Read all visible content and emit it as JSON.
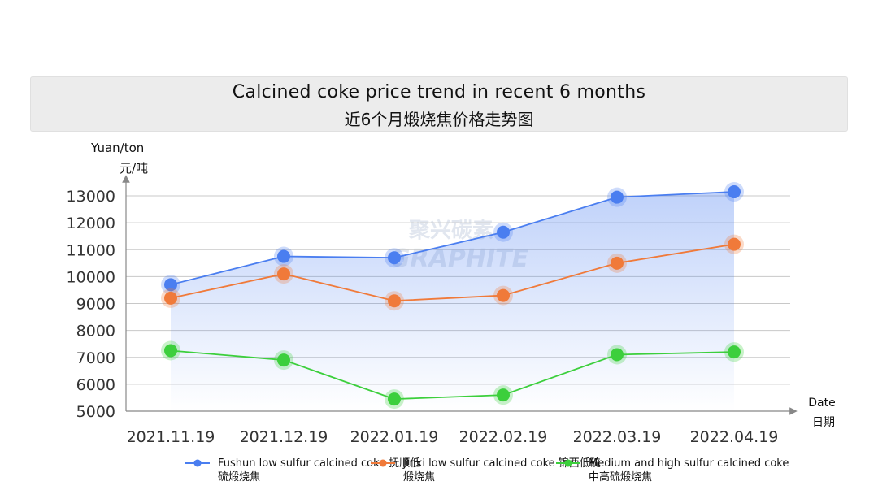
{
  "title": {
    "line1": "Calcined coke price trend in recent 6 months",
    "line2": "近6个月煅烧焦价格走势图"
  },
  "axis": {
    "ylabel_en": "Yuan/ton",
    "ylabel_zh": "元/吨",
    "xlabel_en": "Date",
    "xlabel_zh": "日期"
  },
  "watermark": {
    "cn": "聚兴碳素",
    "en": "GRAPHITE"
  },
  "colors": {
    "blue": "#4a7ef0",
    "orange": "#f07a3a",
    "green": "#3ccf3c"
  },
  "chart_data": {
    "type": "line",
    "x": [
      "2021.11.19",
      "2021.12.19",
      "2022.01.19",
      "2022.02.19",
      "2022.03.19",
      "2022.04.19"
    ],
    "yticks": [
      5000,
      6000,
      7000,
      8000,
      9000,
      10000,
      11000,
      12000,
      13000
    ],
    "ylim": [
      5000,
      13000
    ],
    "grid": true,
    "legend_position": "bottom",
    "series": [
      {
        "name": "Fushun low sulfur calcined coke 抚顺低硫煅烧焦",
        "color": "#4a7ef0",
        "values": [
          9700,
          10750,
          10700,
          11650,
          12950,
          13150
        ]
      },
      {
        "name": "Jinxi low sulfur calcined coke 锦西低硫煅烧焦",
        "color": "#f07a3a",
        "values": [
          9200,
          10100,
          9100,
          9300,
          10500,
          11200
        ]
      },
      {
        "name": "Medium and high sulfur calcined coke 中高硫煅烧焦",
        "color": "#3ccf3c",
        "values": [
          7250,
          6900,
          5450,
          5600,
          7100,
          7200
        ]
      }
    ]
  }
}
